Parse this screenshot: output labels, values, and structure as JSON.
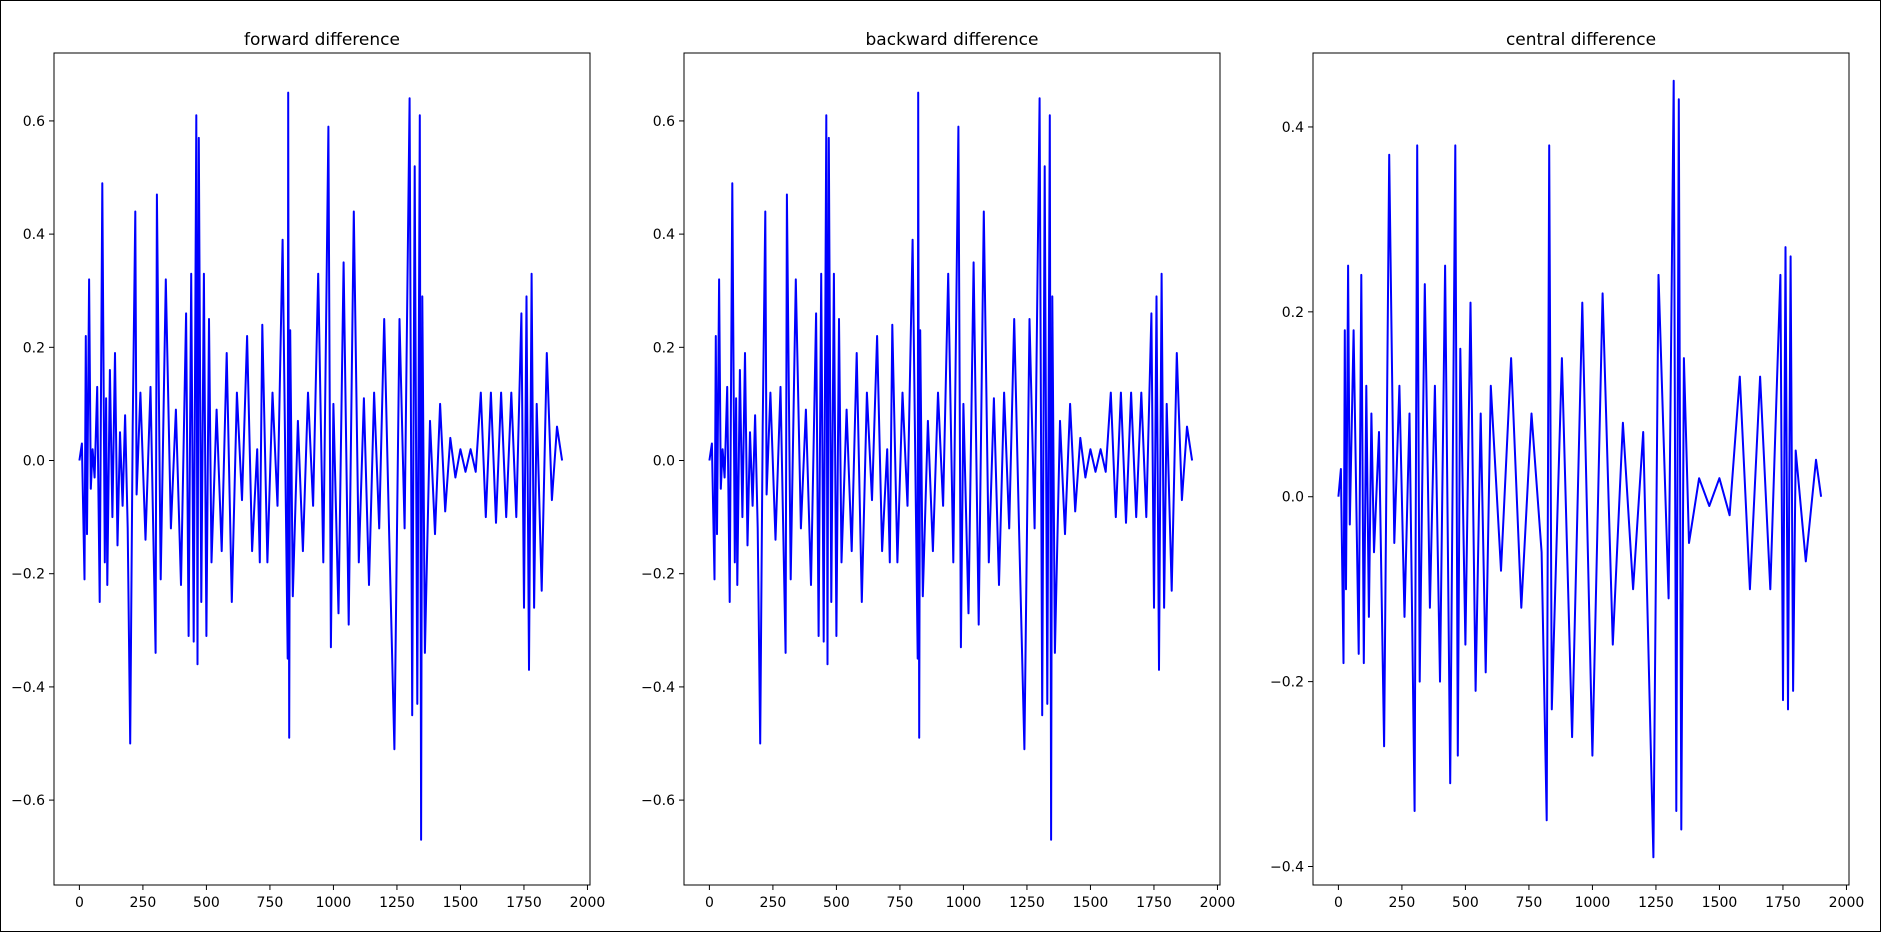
{
  "chart_data": [
    {
      "type": "line",
      "title": "forward difference",
      "xlabel": "",
      "ylabel": "",
      "xlim": [
        -100,
        2010
      ],
      "ylim": [
        -0.75,
        0.72
      ],
      "xticks": [
        0,
        250,
        500,
        750,
        1000,
        1250,
        1500,
        1750,
        2000
      ],
      "yticks": [
        -0.6,
        -0.4,
        -0.2,
        0.0,
        0.2,
        0.4,
        0.6
      ],
      "xtick_labels": [
        "0",
        "250",
        "500",
        "750",
        "1000",
        "1250",
        "1500",
        "1750",
        "2000"
      ],
      "ytick_labels": [
        "−0.6",
        "−0.4",
        "−0.2",
        "0.0",
        "0.2",
        "0.4",
        "0.6"
      ],
      "grid": false,
      "series": [
        {
          "color": "#0000ff",
          "x": [
            0,
            10,
            20,
            25,
            30,
            38,
            45,
            52,
            60,
            70,
            80,
            90,
            100,
            105,
            110,
            120,
            130,
            140,
            150,
            160,
            170,
            180,
            190,
            200,
            210,
            220,
            225,
            240,
            260,
            280,
            300,
            305,
            320,
            340,
            360,
            380,
            400,
            420,
            430,
            440,
            450,
            460,
            465,
            470,
            480,
            490,
            500,
            510,
            520,
            540,
            560,
            580,
            600,
            620,
            640,
            660,
            680,
            700,
            710,
            720,
            740,
            760,
            780,
            800,
            820,
            822,
            826,
            830,
            840,
            860,
            880,
            900,
            920,
            940,
            960,
            980,
            990,
            1000,
            1020,
            1040,
            1060,
            1080,
            1100,
            1120,
            1140,
            1160,
            1180,
            1200,
            1220,
            1240,
            1260,
            1280,
            1300,
            1310,
            1320,
            1330,
            1340,
            1345,
            1350,
            1360,
            1380,
            1400,
            1420,
            1440,
            1460,
            1480,
            1500,
            1520,
            1540,
            1560,
            1580,
            1600,
            1620,
            1640,
            1660,
            1680,
            1700,
            1720,
            1740,
            1750,
            1760,
            1770,
            1780,
            1790,
            1800,
            1820,
            1840,
            1860,
            1880,
            1900
          ],
          "y": [
            0.0,
            0.03,
            -0.21,
            0.22,
            -0.13,
            0.32,
            -0.05,
            0.02,
            -0.03,
            0.13,
            -0.25,
            0.49,
            -0.18,
            0.11,
            -0.22,
            0.16,
            -0.1,
            0.19,
            -0.15,
            0.05,
            -0.08,
            0.08,
            -0.12,
            -0.5,
            0.06,
            0.44,
            -0.06,
            0.12,
            -0.14,
            0.13,
            -0.34,
            0.47,
            -0.21,
            0.32,
            -0.12,
            0.09,
            -0.22,
            0.26,
            -0.31,
            0.33,
            -0.32,
            0.61,
            -0.36,
            0.57,
            -0.25,
            0.33,
            -0.31,
            0.25,
            -0.18,
            0.09,
            -0.16,
            0.19,
            -0.25,
            0.12,
            -0.07,
            0.22,
            -0.16,
            0.02,
            -0.18,
            0.24,
            -0.18,
            0.12,
            -0.08,
            0.39,
            -0.35,
            0.65,
            -0.49,
            0.23,
            -0.24,
            0.07,
            -0.16,
            0.12,
            -0.08,
            0.33,
            -0.18,
            0.59,
            -0.33,
            0.1,
            -0.27,
            0.35,
            -0.29,
            0.44,
            -0.18,
            0.11,
            -0.22,
            0.12,
            -0.12,
            0.25,
            -0.14,
            -0.51,
            0.25,
            -0.12,
            0.64,
            -0.45,
            0.52,
            -0.43,
            0.61,
            -0.67,
            0.29,
            -0.34,
            0.07,
            -0.13,
            0.1,
            -0.09,
            0.04,
            -0.03,
            0.02,
            -0.02,
            0.02,
            -0.02,
            0.12,
            -0.1,
            0.12,
            -0.11,
            0.12,
            -0.1,
            0.12,
            -0.1,
            0.26,
            -0.26,
            0.29,
            -0.37,
            0.33,
            -0.26,
            0.1,
            -0.23,
            0.19,
            -0.07,
            0.06,
            0.0
          ]
        }
      ]
    },
    {
      "type": "line",
      "title": "backward difference",
      "xlabel": "",
      "ylabel": "",
      "xlim": [
        -100,
        2010
      ],
      "ylim": [
        -0.75,
        0.72
      ],
      "xticks": [
        0,
        250,
        500,
        750,
        1000,
        1250,
        1500,
        1750,
        2000
      ],
      "yticks": [
        -0.6,
        -0.4,
        -0.2,
        0.0,
        0.2,
        0.4,
        0.6
      ],
      "xtick_labels": [
        "0",
        "250",
        "500",
        "750",
        "1000",
        "1250",
        "1500",
        "1750",
        "2000"
      ],
      "ytick_labels": [
        "−0.6",
        "−0.4",
        "−0.2",
        "0.0",
        "0.2",
        "0.4",
        "0.6"
      ],
      "grid": false,
      "series": [
        {
          "color": "#0000ff",
          "x": [
            0,
            10,
            20,
            25,
            30,
            38,
            45,
            52,
            60,
            70,
            80,
            90,
            100,
            105,
            110,
            120,
            130,
            140,
            150,
            160,
            170,
            180,
            190,
            200,
            210,
            220,
            225,
            240,
            260,
            280,
            300,
            305,
            320,
            340,
            360,
            380,
            400,
            420,
            430,
            440,
            450,
            460,
            465,
            470,
            480,
            490,
            500,
            510,
            520,
            540,
            560,
            580,
            600,
            620,
            640,
            660,
            680,
            700,
            710,
            720,
            740,
            760,
            780,
            800,
            820,
            822,
            826,
            830,
            840,
            860,
            880,
            900,
            920,
            940,
            960,
            980,
            990,
            1000,
            1020,
            1040,
            1060,
            1080,
            1100,
            1120,
            1140,
            1160,
            1180,
            1200,
            1220,
            1240,
            1260,
            1280,
            1300,
            1310,
            1320,
            1330,
            1340,
            1345,
            1350,
            1360,
            1380,
            1400,
            1420,
            1440,
            1460,
            1480,
            1500,
            1520,
            1540,
            1560,
            1580,
            1600,
            1620,
            1640,
            1660,
            1680,
            1700,
            1720,
            1740,
            1750,
            1760,
            1770,
            1780,
            1790,
            1800,
            1820,
            1840,
            1860,
            1880,
            1900
          ],
          "y": [
            0.0,
            0.03,
            -0.21,
            0.22,
            -0.13,
            0.32,
            -0.05,
            0.02,
            -0.03,
            0.13,
            -0.25,
            0.49,
            -0.18,
            0.11,
            -0.22,
            0.16,
            -0.1,
            0.19,
            -0.15,
            0.05,
            -0.08,
            0.08,
            -0.12,
            -0.5,
            0.06,
            0.44,
            -0.06,
            0.12,
            -0.14,
            0.13,
            -0.34,
            0.47,
            -0.21,
            0.32,
            -0.12,
            0.09,
            -0.22,
            0.26,
            -0.31,
            0.33,
            -0.32,
            0.61,
            -0.36,
            0.57,
            -0.25,
            0.33,
            -0.31,
            0.25,
            -0.18,
            0.09,
            -0.16,
            0.19,
            -0.25,
            0.12,
            -0.07,
            0.22,
            -0.16,
            0.02,
            -0.18,
            0.24,
            -0.18,
            0.12,
            -0.08,
            0.39,
            -0.35,
            0.65,
            -0.49,
            0.23,
            -0.24,
            0.07,
            -0.16,
            0.12,
            -0.08,
            0.33,
            -0.18,
            0.59,
            -0.33,
            0.1,
            -0.27,
            0.35,
            -0.29,
            0.44,
            -0.18,
            0.11,
            -0.22,
            0.12,
            -0.12,
            0.25,
            -0.14,
            -0.51,
            0.25,
            -0.12,
            0.64,
            -0.45,
            0.52,
            -0.43,
            0.61,
            -0.67,
            0.29,
            -0.34,
            0.07,
            -0.13,
            0.1,
            -0.09,
            0.04,
            -0.03,
            0.02,
            -0.02,
            0.02,
            -0.02,
            0.12,
            -0.1,
            0.12,
            -0.11,
            0.12,
            -0.1,
            0.12,
            -0.1,
            0.26,
            -0.26,
            0.29,
            -0.37,
            0.33,
            -0.26,
            0.1,
            -0.23,
            0.19,
            -0.07,
            0.06,
            0.0
          ]
        }
      ]
    },
    {
      "type": "line",
      "title": "central difference",
      "xlabel": "",
      "ylabel": "",
      "xlim": [
        -100,
        2010
      ],
      "ylim": [
        -0.42,
        0.48
      ],
      "xticks": [
        0,
        250,
        500,
        750,
        1000,
        1250,
        1500,
        1750,
        2000
      ],
      "yticks": [
        -0.4,
        -0.2,
        0.0,
        0.2,
        0.4
      ],
      "xtick_labels": [
        "0",
        "250",
        "500",
        "750",
        "1000",
        "1250",
        "1500",
        "1750",
        "2000"
      ],
      "ytick_labels": [
        "−0.4",
        "−0.2",
        "0.0",
        "0.2",
        "0.4"
      ],
      "grid": false,
      "series": [
        {
          "color": "#0000ff",
          "x": [
            0,
            10,
            20,
            25,
            30,
            38,
            45,
            60,
            80,
            90,
            100,
            110,
            120,
            130,
            140,
            160,
            180,
            200,
            220,
            240,
            260,
            280,
            300,
            310,
            320,
            340,
            360,
            380,
            400,
            420,
            440,
            460,
            470,
            480,
            500,
            520,
            540,
            560,
            580,
            600,
            640,
            680,
            720,
            760,
            800,
            820,
            830,
            840,
            880,
            920,
            960,
            1000,
            1040,
            1080,
            1120,
            1160,
            1200,
            1240,
            1260,
            1300,
            1320,
            1330,
            1340,
            1350,
            1360,
            1380,
            1420,
            1460,
            1500,
            1540,
            1580,
            1620,
            1660,
            1700,
            1740,
            1750,
            1760,
            1770,
            1780,
            1790,
            1800,
            1840,
            1880,
            1900
          ],
          "y": [
            0.0,
            0.03,
            -0.18,
            0.18,
            -0.1,
            0.25,
            -0.03,
            0.18,
            -0.17,
            0.24,
            -0.18,
            0.12,
            -0.13,
            0.09,
            -0.06,
            0.07,
            -0.27,
            0.37,
            -0.05,
            0.12,
            -0.13,
            0.09,
            -0.34,
            0.38,
            -0.2,
            0.23,
            -0.12,
            0.12,
            -0.2,
            0.25,
            -0.31,
            0.38,
            -0.28,
            0.16,
            -0.16,
            0.21,
            -0.21,
            0.09,
            -0.19,
            0.12,
            -0.08,
            0.15,
            -0.12,
            0.09,
            -0.06,
            -0.35,
            0.38,
            -0.23,
            0.15,
            -0.26,
            0.21,
            -0.28,
            0.22,
            -0.16,
            0.08,
            -0.1,
            0.07,
            -0.39,
            0.24,
            -0.11,
            0.45,
            -0.34,
            0.43,
            -0.36,
            0.15,
            -0.05,
            0.02,
            -0.01,
            0.02,
            -0.02,
            0.13,
            -0.1,
            0.13,
            -0.1,
            0.24,
            -0.22,
            0.27,
            -0.23,
            0.26,
            -0.21,
            0.05,
            -0.07,
            0.04,
            0.0
          ]
        }
      ]
    }
  ]
}
